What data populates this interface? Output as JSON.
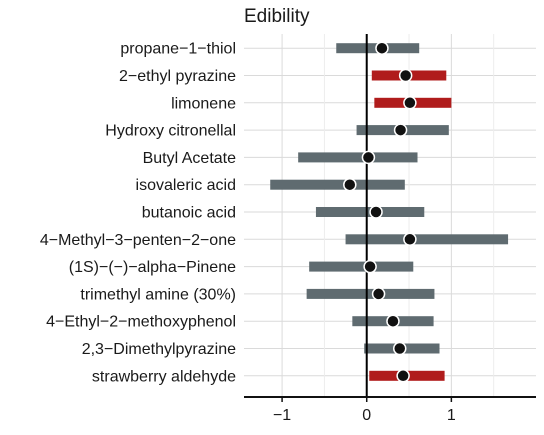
{
  "chart_data": {
    "type": "dot-interval",
    "title": "Edibility",
    "xlim": [
      -1.45,
      2.0
    ],
    "xticks": [
      -1,
      0,
      1
    ],
    "xtick_labels": [
      "−1",
      "0",
      "1"
    ],
    "grid": true,
    "reference_line_x": 0,
    "colors": {
      "neutral": "#5f6b70",
      "positive": "#b01c1c",
      "point_fill": "#111111",
      "point_stroke": "#ffffff",
      "zero_line": "#000000",
      "grid": "#dadada"
    },
    "series": [
      {
        "label": "propane−1−thiol",
        "mean": 0.18,
        "low": -0.36,
        "high": 0.62,
        "highlight": false
      },
      {
        "label": "2−ethyl pyrazine",
        "mean": 0.46,
        "low": 0.06,
        "high": 0.94,
        "highlight": true
      },
      {
        "label": "limonene",
        "mean": 0.51,
        "low": 0.09,
        "high": 1.0,
        "highlight": true
      },
      {
        "label": "Hydroxy citronellal",
        "mean": 0.4,
        "low": -0.12,
        "high": 0.97,
        "highlight": false
      },
      {
        "label": "Butyl Acetate",
        "mean": 0.02,
        "low": -0.81,
        "high": 0.6,
        "highlight": false
      },
      {
        "label": "isovaleric acid",
        "mean": -0.2,
        "low": -1.14,
        "high": 0.45,
        "highlight": false
      },
      {
        "label": "butanoic acid",
        "mean": 0.11,
        "low": -0.6,
        "high": 0.68,
        "highlight": false
      },
      {
        "label": "4−Methyl−3−penten−2−one",
        "mean": 0.51,
        "low": -0.25,
        "high": 1.67,
        "highlight": false
      },
      {
        "label": "(1S)−(−)−alpha−Pinene",
        "mean": 0.04,
        "low": -0.68,
        "high": 0.55,
        "highlight": false
      },
      {
        "label": "trimethyl amine (30%)",
        "mean": 0.14,
        "low": -0.71,
        "high": 0.8,
        "highlight": false
      },
      {
        "label": "4−Ethyl−2−methoxyphenol",
        "mean": 0.31,
        "low": -0.17,
        "high": 0.79,
        "highlight": false
      },
      {
        "label": "2,3−Dimethylpyrazine",
        "mean": 0.39,
        "low": -0.03,
        "high": 0.86,
        "highlight": false
      },
      {
        "label": "strawberry aldehyde",
        "mean": 0.43,
        "low": 0.03,
        "high": 0.92,
        "highlight": true
      }
    ]
  }
}
